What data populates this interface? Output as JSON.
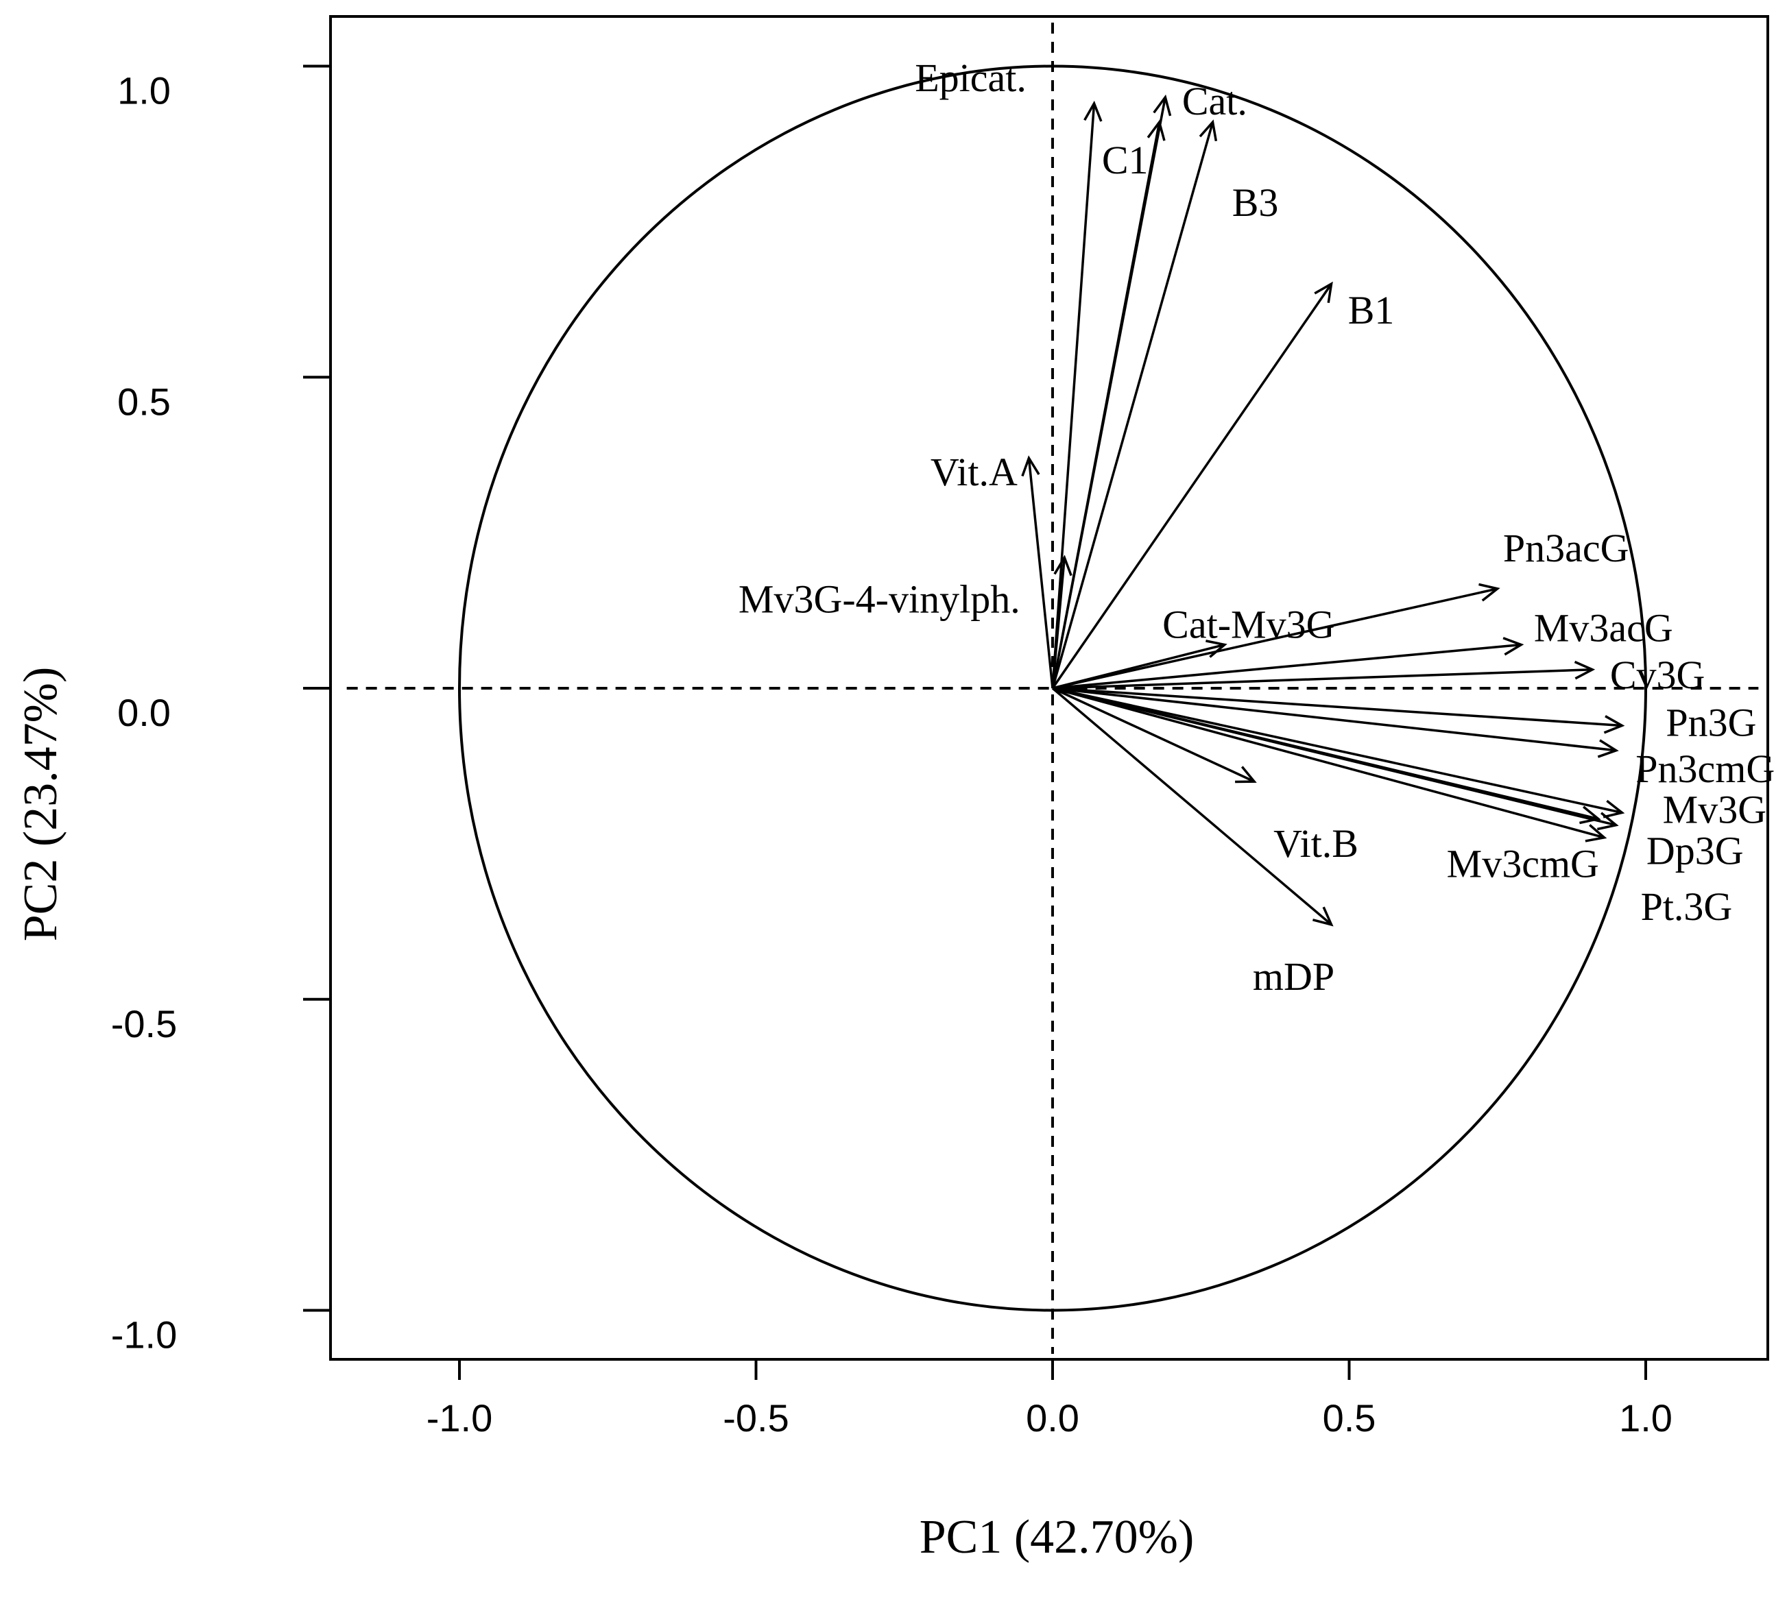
{
  "chart_data": {
    "type": "scatter",
    "subtype": "pca-correlation-circle",
    "xlabel": "PC1 (42.70%)",
    "ylabel": "PC2 (23.47%)",
    "xlim": [
      -1.2,
      1.2
    ],
    "ylim": [
      -1.08,
      1.08
    ],
    "xticks": [
      {
        "value": -1.0,
        "label": "-1.0"
      },
      {
        "value": -0.5,
        "label": "-0.5"
      },
      {
        "value": 0.0,
        "label": "0.0"
      },
      {
        "value": 0.5,
        "label": "0.5"
      },
      {
        "value": 1.0,
        "label": "1.0"
      }
    ],
    "yticks": [
      {
        "value": -1.0,
        "label": "-1.0"
      },
      {
        "value": -0.5,
        "label": "-0.5"
      },
      {
        "value": 0.0,
        "label": "0.0"
      },
      {
        "value": 0.5,
        "label": "0.5"
      },
      {
        "value": 1.0,
        "label": "1.0"
      }
    ],
    "circle_radius": 1.0,
    "reference_lines": "dashed at x=0 and y=0",
    "variables": [
      {
        "name": "Epicat.",
        "x": 0.07,
        "y": 0.94
      },
      {
        "name": "C1",
        "x": 0.18,
        "y": 0.91
      },
      {
        "name": "Cat.",
        "x": 0.19,
        "y": 0.95
      },
      {
        "name": "B3",
        "x": 0.27,
        "y": 0.91
      },
      {
        "name": "B1",
        "x": 0.47,
        "y": 0.65
      },
      {
        "name": "Vit.A",
        "x": -0.04,
        "y": 0.37
      },
      {
        "name": "Mv3G-4-vinylph.",
        "x": 0.02,
        "y": 0.21
      },
      {
        "name": "Cat-Mv3G",
        "x": 0.29,
        "y": 0.07
      },
      {
        "name": "Pn3acG",
        "x": 0.75,
        "y": 0.16
      },
      {
        "name": "Mv3acG",
        "x": 0.79,
        "y": 0.07
      },
      {
        "name": "Cv3G",
        "x": 0.91,
        "y": 0.03
      },
      {
        "name": "Pn3G",
        "x": 0.96,
        "y": -0.06
      },
      {
        "name": "Pn3cmG",
        "x": 0.95,
        "y": -0.1
      },
      {
        "name": "Mv3G",
        "x": 0.96,
        "y": -0.2
      },
      {
        "name": "Dp3G",
        "x": 0.95,
        "y": -0.22
      },
      {
        "name": "Pt.3G",
        "x": 0.93,
        "y": -0.24
      },
      {
        "name": "Mv3cmG",
        "x": 0.92,
        "y": -0.21
      },
      {
        "name": "Vit.B",
        "x": 0.34,
        "y": -0.15
      },
      {
        "name": "mDP",
        "x": 0.47,
        "y": -0.38
      }
    ]
  }
}
